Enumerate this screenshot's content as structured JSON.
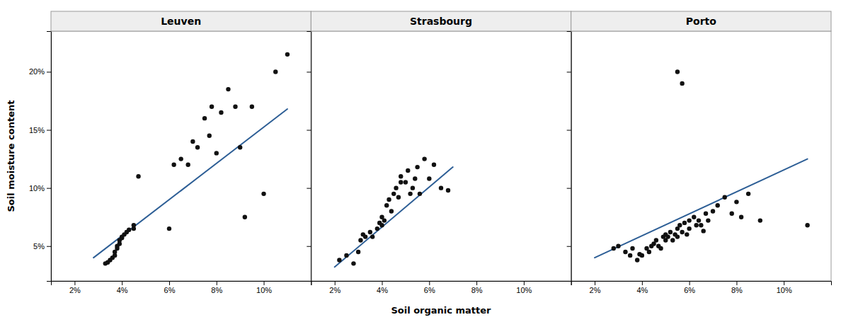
{
  "chart_data": [
    {
      "type": "scatter",
      "title": "Leuven",
      "ylabel": "Soil moisture content",
      "xlim": [
        0.01,
        0.12
      ],
      "ylim": [
        0.02,
        0.235
      ],
      "xticks": [
        {
          "value": 0.02,
          "label": "2%"
        },
        {
          "value": 0.04,
          "label": "4%"
        },
        {
          "value": 0.06,
          "label": "6%"
        },
        {
          "value": 0.08,
          "label": "8%"
        },
        {
          "value": 0.1,
          "label": "10%"
        }
      ],
      "yticks": [
        {
          "value": 0.05,
          "label": "5%"
        },
        {
          "value": 0.1,
          "label": "10%"
        },
        {
          "value": 0.15,
          "label": "15%"
        },
        {
          "value": 0.2,
          "label": "20%"
        }
      ],
      "grid": false,
      "series": [
        {
          "type": "scatter",
          "color": "#111111",
          "x": [
            0.033,
            0.034,
            0.035,
            0.036,
            0.037,
            0.037,
            0.038,
            0.038,
            0.039,
            0.039,
            0.04,
            0.04,
            0.041,
            0.042,
            0.043,
            0.045,
            0.045,
            0.047,
            0.06,
            0.062,
            0.065,
            0.068,
            0.07,
            0.072,
            0.075,
            0.077,
            0.078,
            0.08,
            0.082,
            0.085,
            0.088,
            0.09,
            0.092,
            0.095,
            0.1,
            0.105,
            0.11
          ],
          "values": [
            0.035,
            0.036,
            0.038,
            0.04,
            0.042,
            0.045,
            0.048,
            0.05,
            0.052,
            0.055,
            0.057,
            0.058,
            0.06,
            0.062,
            0.064,
            0.065,
            0.068,
            0.11,
            0.065,
            0.12,
            0.125,
            0.12,
            0.14,
            0.135,
            0.16,
            0.145,
            0.17,
            0.13,
            0.165,
            0.185,
            0.17,
            0.135,
            0.075,
            0.17,
            0.095,
            0.2,
            0.215
          ]
        },
        {
          "type": "line",
          "color": "#2e5f96",
          "x": [
            0.028,
            0.11
          ],
          "values": [
            0.04,
            0.168
          ]
        }
      ]
    },
    {
      "type": "scatter",
      "title": "Strasbourg",
      "xlabel": "Soil organic matter",
      "xlim": [
        0.01,
        0.12
      ],
      "ylim": [
        0.02,
        0.235
      ],
      "xticks": [
        {
          "value": 0.02,
          "label": "2%"
        },
        {
          "value": 0.04,
          "label": "4%"
        },
        {
          "value": 0.06,
          "label": "6%"
        },
        {
          "value": 0.08,
          "label": "8%"
        },
        {
          "value": 0.1,
          "label": "10%"
        }
      ],
      "yticks": [
        0.05,
        0.1,
        0.15,
        0.2
      ],
      "tick_labels": "x",
      "grid": false,
      "series": [
        {
          "type": "scatter",
          "color": "#111111",
          "x": [
            0.022,
            0.025,
            0.028,
            0.03,
            0.031,
            0.032,
            0.033,
            0.035,
            0.036,
            0.038,
            0.039,
            0.04,
            0.04,
            0.041,
            0.042,
            0.043,
            0.044,
            0.045,
            0.046,
            0.047,
            0.048,
            0.048,
            0.05,
            0.051,
            0.052,
            0.053,
            0.054,
            0.055,
            0.056,
            0.058,
            0.06,
            0.062,
            0.065,
            0.068
          ],
          "values": [
            0.038,
            0.042,
            0.035,
            0.045,
            0.055,
            0.06,
            0.058,
            0.062,
            0.058,
            0.065,
            0.07,
            0.068,
            0.075,
            0.072,
            0.085,
            0.09,
            0.08,
            0.095,
            0.1,
            0.092,
            0.105,
            0.11,
            0.105,
            0.115,
            0.095,
            0.1,
            0.108,
            0.118,
            0.095,
            0.125,
            0.108,
            0.12,
            0.1,
            0.098
          ]
        },
        {
          "type": "line",
          "color": "#2e5f96",
          "x": [
            0.02,
            0.07
          ],
          "values": [
            0.032,
            0.118
          ]
        }
      ]
    },
    {
      "type": "scatter",
      "title": "Porto",
      "xlim": [
        0.01,
        0.12
      ],
      "ylim": [
        0.02,
        0.235
      ],
      "xticks": [
        {
          "value": 0.02,
          "label": "2%"
        },
        {
          "value": 0.04,
          "label": "4%"
        },
        {
          "value": 0.06,
          "label": "6%"
        },
        {
          "value": 0.08,
          "label": "8%"
        },
        {
          "value": 0.1,
          "label": "10%"
        }
      ],
      "yticks": [
        0.05,
        0.1,
        0.15,
        0.2
      ],
      "tick_labels": "x",
      "grid": false,
      "series": [
        {
          "type": "scatter",
          "color": "#111111",
          "x": [
            0.028,
            0.03,
            0.033,
            0.035,
            0.036,
            0.038,
            0.039,
            0.04,
            0.042,
            0.043,
            0.044,
            0.045,
            0.046,
            0.047,
            0.048,
            0.049,
            0.05,
            0.05,
            0.051,
            0.052,
            0.053,
            0.054,
            0.055,
            0.055,
            0.056,
            0.057,
            0.058,
            0.059,
            0.06,
            0.06,
            0.062,
            0.063,
            0.064,
            0.065,
            0.066,
            0.067,
            0.068,
            0.07,
            0.072,
            0.075,
            0.078,
            0.08,
            0.082,
            0.085,
            0.09,
            0.11
          ],
          "values": [
            0.048,
            0.05,
            0.045,
            0.042,
            0.048,
            0.038,
            0.043,
            0.042,
            0.048,
            0.045,
            0.05,
            0.052,
            0.055,
            0.05,
            0.048,
            0.058,
            0.055,
            0.06,
            0.058,
            0.062,
            0.055,
            0.06,
            0.065,
            0.058,
            0.068,
            0.062,
            0.07,
            0.06,
            0.072,
            0.065,
            0.075,
            0.068,
            0.072,
            0.068,
            0.063,
            0.078,
            0.072,
            0.08,
            0.085,
            0.092,
            0.078,
            0.088,
            0.075,
            0.095,
            0.072,
            0.068
          ]
        },
        {
          "type": "scatter",
          "color": "#111111",
          "x": [
            0.055,
            0.057
          ],
          "values": [
            0.2,
            0.19
          ]
        },
        {
          "type": "line",
          "color": "#2e5f96",
          "x": [
            0.02,
            0.11
          ],
          "values": [
            0.04,
            0.125
          ]
        }
      ]
    }
  ]
}
